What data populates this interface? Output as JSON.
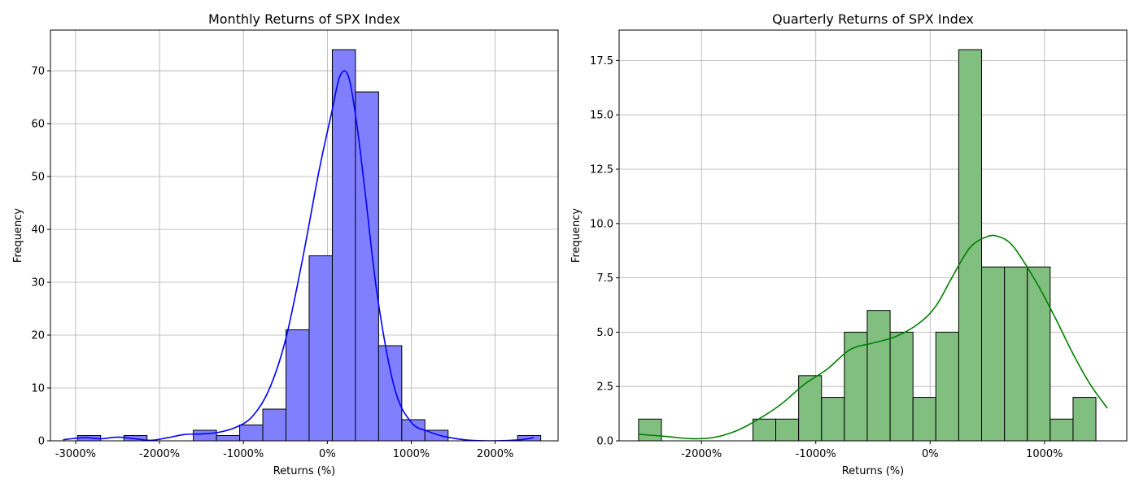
{
  "chart_data": [
    {
      "type": "bar",
      "title": "Monthly Returns of SPX Index",
      "xlabel": "Returns (%)",
      "ylabel": "Frequency",
      "xlim": [
        -3300,
        2750
      ],
      "ylim": [
        0,
        77.7
      ],
      "xticks": [
        -3000,
        -2000,
        -1000,
        0,
        1000,
        2000
      ],
      "xtick_labels": [
        "-3000%",
        "-2000%",
        "-1000%",
        "0%",
        "1000%",
        "2000%"
      ],
      "yticks": [
        0,
        10,
        20,
        30,
        40,
        50,
        60,
        70
      ],
      "ytick_labels": [
        "0",
        "10",
        "20",
        "30",
        "40",
        "50",
        "60",
        "70"
      ],
      "grid": true,
      "bar_color": "#8080ff",
      "line_color": "#0000ff",
      "bins": {
        "x": [
          -2977,
          -2701,
          -2425,
          -2149,
          -1873,
          -1597,
          -1321,
          -1045,
          -769,
          -493,
          -217,
          59,
          335,
          611,
          887,
          1163,
          1439,
          1715,
          1991,
          2267
        ],
        "width": 276,
        "values": [
          1,
          0,
          1,
          0,
          0,
          2,
          1,
          3,
          6,
          21,
          35,
          74,
          66,
          18,
          4,
          2,
          0,
          0,
          0,
          1
        ]
      },
      "kde": {
        "x": [
          -3150,
          -2900,
          -2700,
          -2500,
          -2300,
          -2100,
          -1900,
          -1700,
          -1500,
          -1300,
          -1100,
          -900,
          -700,
          -500,
          -300,
          -100,
          50,
          150,
          250,
          350,
          450,
          600,
          800,
          1000,
          1200,
          1400,
          1700,
          2000,
          2300,
          2460
        ],
        "y": [
          0.2,
          0.6,
          0.4,
          0.7,
          0.4,
          0.1,
          0.6,
          1.2,
          1.3,
          1.6,
          2.5,
          4.5,
          9.5,
          19,
          34,
          51,
          62,
          69,
          69,
          60,
          47,
          27,
          10,
          3.5,
          1.8,
          0.8,
          0.1,
          0.0,
          0.2,
          0.6
        ]
      }
    },
    {
      "type": "bar",
      "title": "Quarterly Returns of SPX Index",
      "xlabel": "Returns (%)",
      "ylabel": "Frequency",
      "xlim": [
        -2720,
        1720
      ],
      "ylim": [
        0,
        18.9
      ],
      "xticks": [
        -2000,
        -1000,
        0,
        1000
      ],
      "xtick_labels": [
        "-2000%",
        "-1000%",
        "0%",
        "1000%"
      ],
      "yticks": [
        0,
        2.5,
        5,
        7.5,
        10,
        12.5,
        15,
        17.5
      ],
      "ytick_labels": [
        "0.0",
        "2.5",
        "5.0",
        "7.5",
        "10.0",
        "12.5",
        "15.0",
        "17.5"
      ],
      "grid": true,
      "bar_color": "#80bf80",
      "line_color": "#008000",
      "bins": {
        "x": [
          -2550,
          -2350,
          -2150,
          -1950,
          -1750,
          -1550,
          -1350,
          -1150,
          -950,
          -750,
          -550,
          -350,
          -150,
          50,
          250,
          450,
          650,
          850,
          1050,
          1250,
          1450
        ],
        "width": 200,
        "values": [
          1,
          0,
          0,
          0,
          0,
          1,
          1,
          3,
          2,
          5,
          6,
          5,
          2,
          5,
          18,
          8,
          8,
          8,
          1,
          2,
          0
        ]
      },
      "kde": {
        "x": [
          -2550,
          -2300,
          -2100,
          -1900,
          -1700,
          -1500,
          -1300,
          -1100,
          -900,
          -700,
          -500,
          -300,
          -100,
          50,
          200,
          350,
          500,
          600,
          700,
          800,
          950,
          1100,
          1250,
          1400,
          1550
        ],
        "y": [
          0.3,
          0.2,
          0.1,
          0.15,
          0.45,
          1.0,
          1.7,
          2.6,
          3.3,
          4.2,
          4.5,
          4.8,
          5.4,
          6.2,
          7.6,
          8.9,
          9.4,
          9.4,
          9.1,
          8.4,
          7.1,
          5.6,
          4.0,
          2.6,
          1.5
        ]
      }
    }
  ]
}
